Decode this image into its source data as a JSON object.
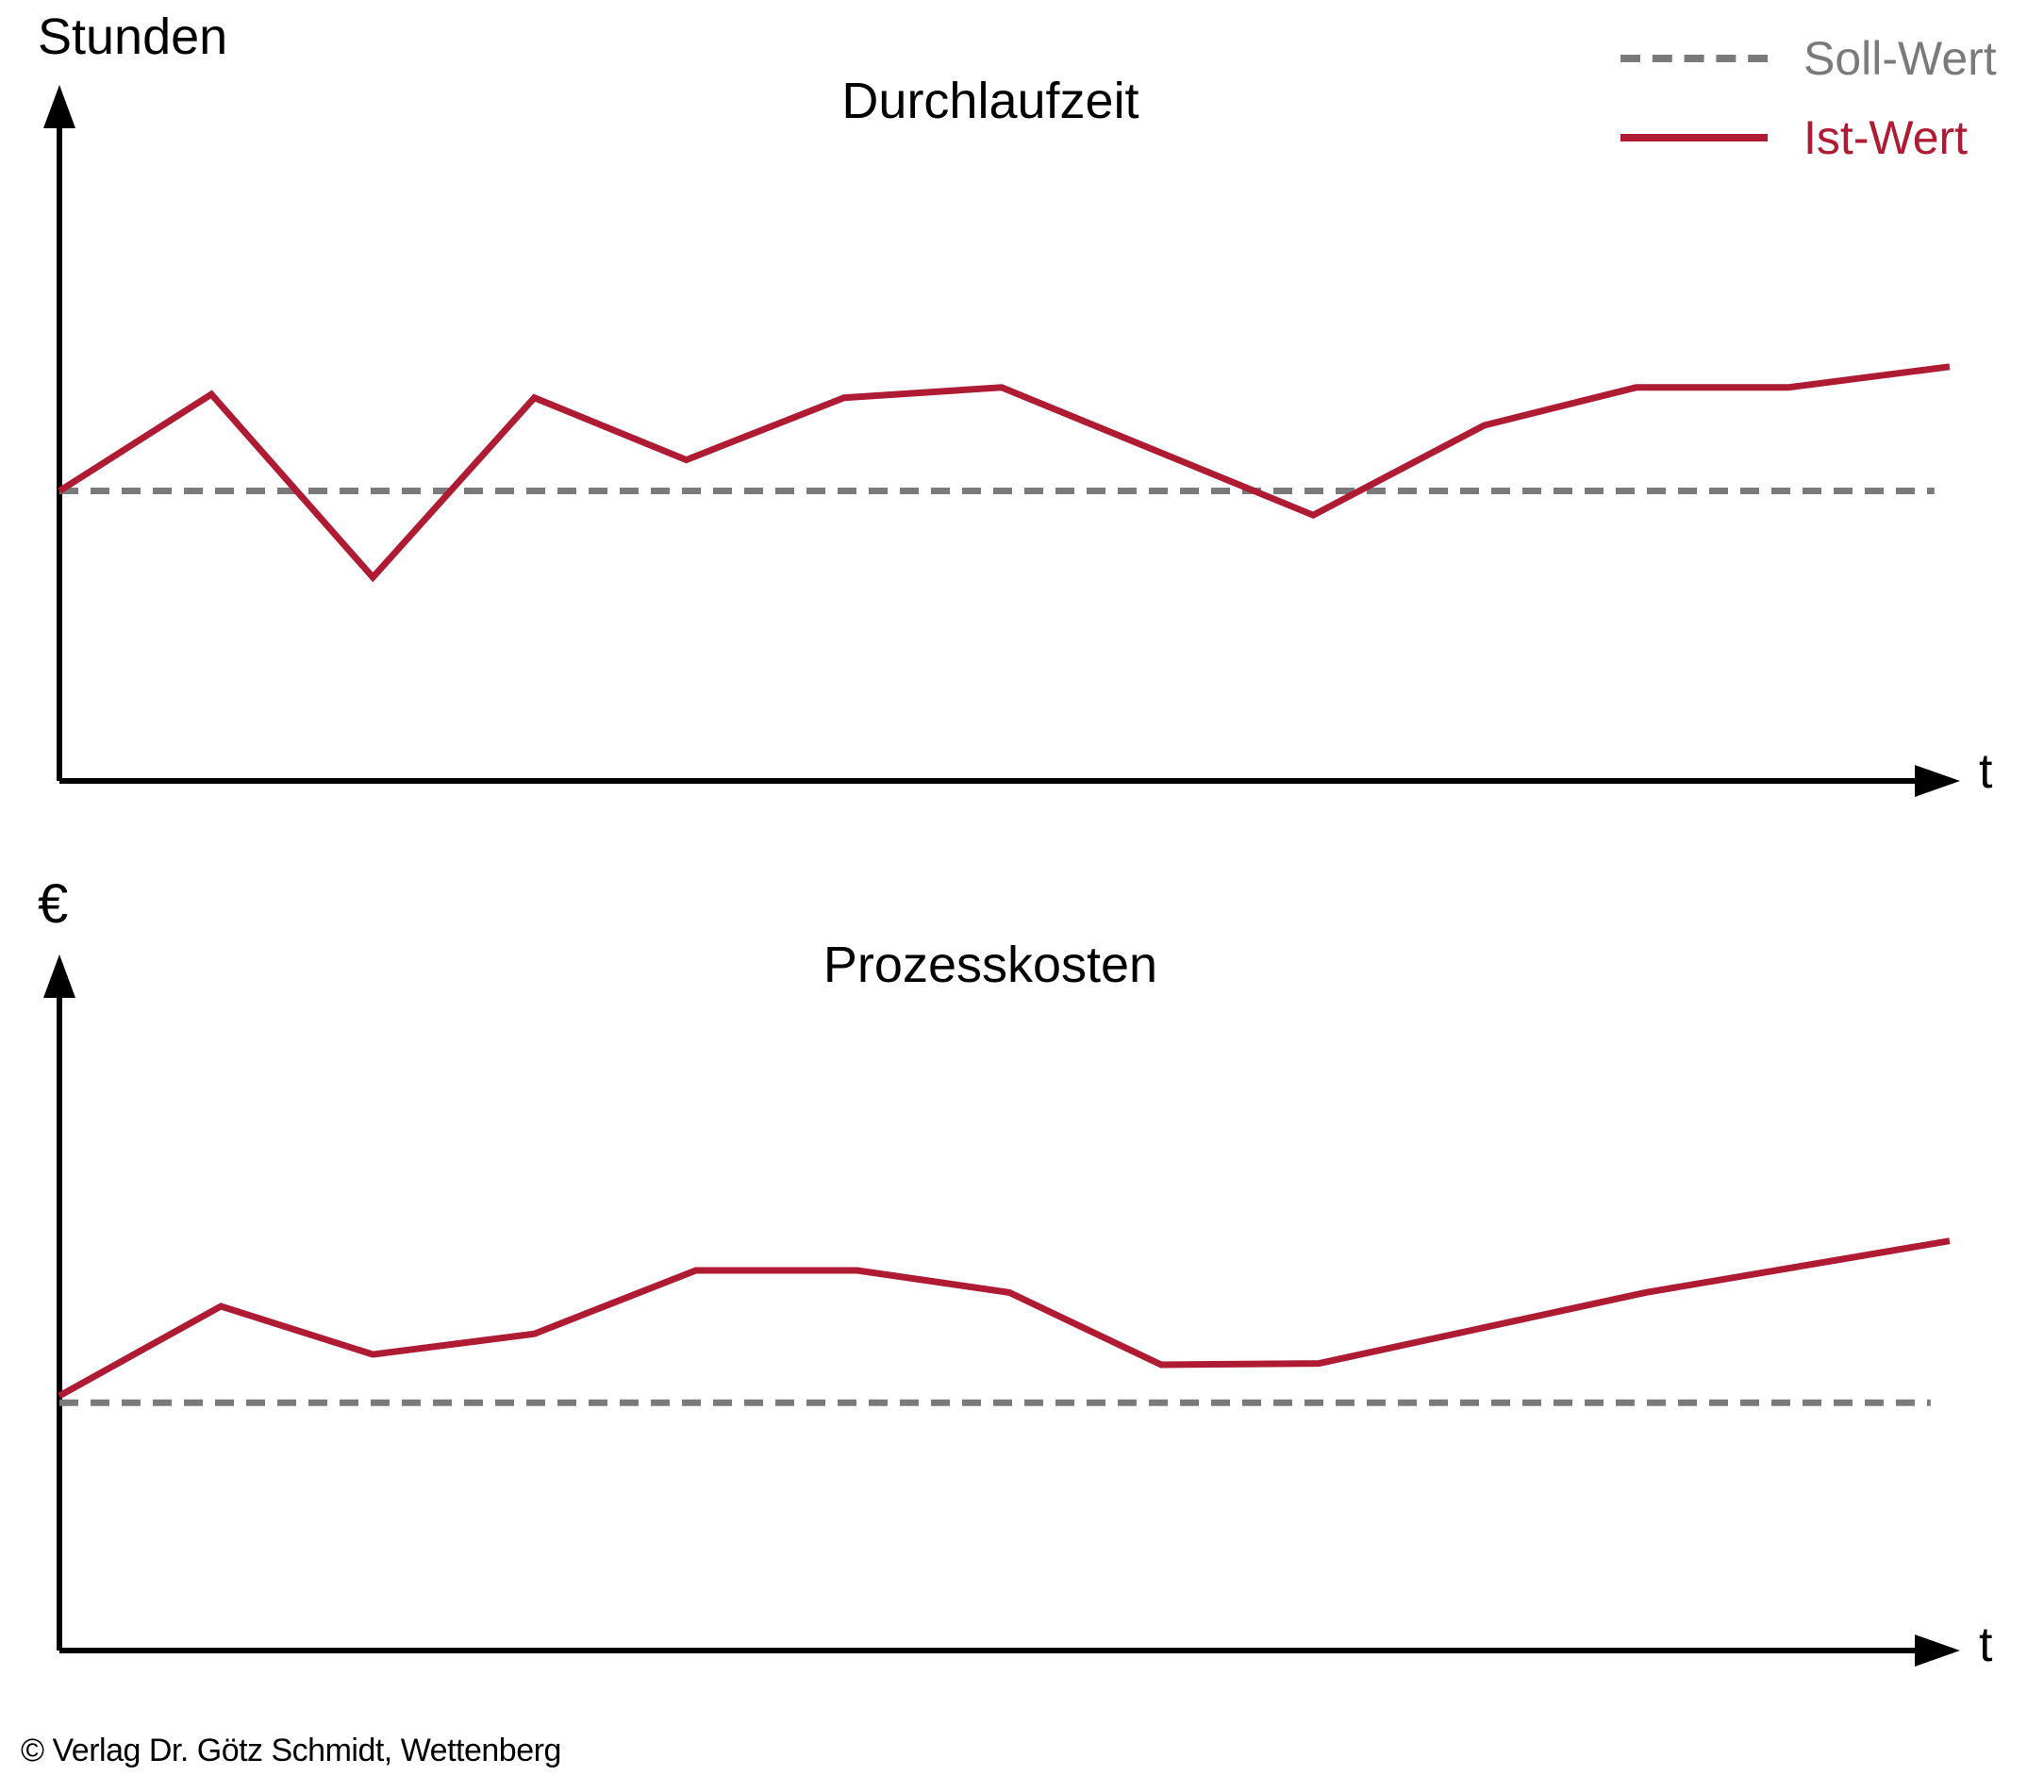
{
  "figure": {
    "background": "#ffffff",
    "accent_red": "#ae1b33",
    "soll_gray": "#7a7a7a"
  },
  "legend": {
    "position": "top-right",
    "items": [
      {
        "label": "Soll-Wert",
        "style": "dashed",
        "color": "#7a7a7a"
      },
      {
        "label": "Ist-Wert",
        "style": "solid",
        "color": "#ae1b33"
      }
    ]
  },
  "chart_data": [
    {
      "type": "line",
      "title": "Durchlaufzeit",
      "ylabel": "Stunden",
      "xlabel": "t",
      "xlim": [
        0,
        100
      ],
      "ylim": [
        0,
        100
      ],
      "grid": false,
      "axes_note": "axes have no tick marks or numeric labels; values are % of axis range",
      "legend_position": "top-right",
      "series": [
        {
          "name": "Soll-Wert",
          "kind": "constant",
          "style": "dashed",
          "color": "#7a7a7a",
          "value": 42
        },
        {
          "name": "Ist-Wert",
          "kind": "polyline",
          "style": "solid",
          "color": "#ae1b33",
          "points": [
            [
              0,
              42
            ],
            [
              8,
              56
            ],
            [
              16.5,
              29.5
            ],
            [
              25,
              55.5
            ],
            [
              33,
              46.5
            ],
            [
              41.3,
              55.5
            ],
            [
              49.6,
              57
            ],
            [
              66,
              38.5
            ],
            [
              75,
              51.5
            ],
            [
              83,
              57
            ],
            [
              91,
              57
            ],
            [
              99.5,
              60
            ]
          ]
        }
      ]
    },
    {
      "type": "line",
      "title": "Prozesskosten",
      "ylabel": "€",
      "xlabel": "t",
      "xlim": [
        0,
        100
      ],
      "ylim": [
        0,
        100
      ],
      "grid": false,
      "axes_note": "axes have no tick marks or numeric labels; values are % of axis range",
      "legend_position": "shared with top chart",
      "series": [
        {
          "name": "Soll-Wert",
          "kind": "constant",
          "style": "dashed",
          "color": "#7a7a7a",
          "value": 36
        },
        {
          "name": "Ist-Wert",
          "kind": "polyline",
          "style": "solid",
          "color": "#ae1b33",
          "points": [
            [
              0,
              37
            ],
            [
              8.5,
              50
            ],
            [
              16.5,
              43
            ],
            [
              25,
              46
            ],
            [
              33.5,
              55.2
            ],
            [
              42,
              55.2
            ],
            [
              50,
              52
            ],
            [
              58,
              41.5
            ],
            [
              66.3,
              41.7
            ],
            [
              83.5,
              52
            ],
            [
              99.5,
              59.5
            ]
          ]
        }
      ]
    }
  ],
  "footer": {
    "copyright": "© Verlag Dr. Götz Schmidt, Wettenberg"
  }
}
